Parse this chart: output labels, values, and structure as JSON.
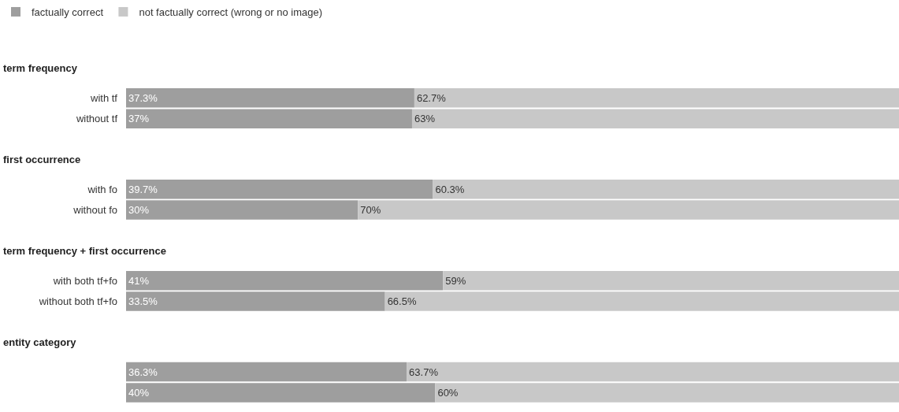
{
  "chart_data": [
    {
      "type": "bar",
      "orientation": "horizontal",
      "stacked": true,
      "title": "term frequency",
      "categories": [
        "with tf",
        "without tf"
      ],
      "tick_labels": "y",
      "legend": "top left",
      "series": [
        {
          "name": "factually correct",
          "color": "#9e9e9e",
          "values": [
            37.3,
            37
          ],
          "value_labels": [
            "37.3%",
            "37%"
          ]
        },
        {
          "name": "not factually correct (wrong or no image)",
          "color": "#c8c8c8",
          "values": [
            62.7,
            63
          ],
          "value_labels": [
            "62.7%",
            "63%"
          ]
        }
      ]
    },
    {
      "type": "bar",
      "orientation": "horizontal",
      "stacked": true,
      "title": "first occurrence",
      "categories": [
        "with fo",
        "without fo"
      ],
      "tick_labels": "y",
      "series": [
        {
          "color": "#9e9e9e",
          "values": [
            39.7,
            30
          ],
          "value_labels": [
            "39.7%",
            "30%"
          ]
        },
        {
          "color": "#c8c8c8",
          "values": [
            60.3,
            70
          ],
          "value_labels": [
            "60.3%",
            "70%"
          ]
        }
      ]
    },
    {
      "type": "bar",
      "orientation": "horizontal",
      "stacked": true,
      "title": "term frequency + first occurrence",
      "categories": [
        "with both tf+fo",
        "without both tf+fo"
      ],
      "tick_labels": "y",
      "series": [
        {
          "color": "#9e9e9e",
          "values": [
            41,
            33.5
          ],
          "value_labels": [
            "41%",
            "33.5%"
          ]
        },
        {
          "color": "#c8c8c8",
          "values": [
            59,
            66.5
          ],
          "value_labels": [
            "59%",
            "66.5%"
          ]
        }
      ]
    },
    {
      "type": "bar",
      "orientation": "horizontal",
      "stacked": true,
      "title": "entity category",
      "categories": [
        null,
        null
      ],
      "tick_labels": "y",
      "series": [
        {
          "color": "#9e9e9e",
          "values": [
            36.3,
            40
          ],
          "value_labels": [
            "36.3%",
            "40%"
          ]
        },
        {
          "color": "#c8c8c8",
          "values": [
            63.7,
            60
          ],
          "value_labels": [
            "63.7%",
            "60%"
          ]
        }
      ]
    }
  ]
}
